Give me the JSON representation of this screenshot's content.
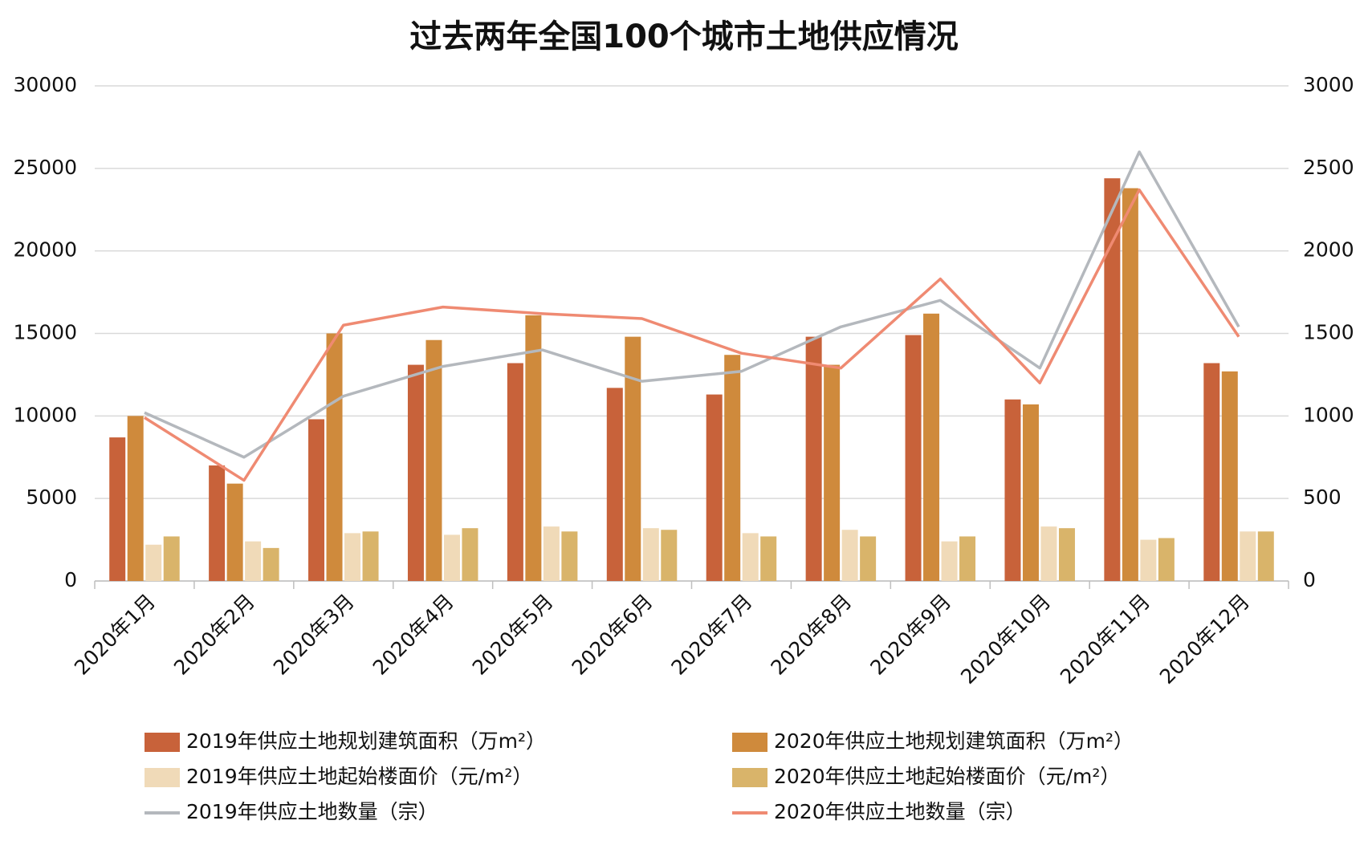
{
  "chart_data": {
    "type": "bar",
    "title": "过去两年全国100个城市土地供应情况",
    "categories": [
      "2020年1月",
      "2020年2月",
      "2020年3月",
      "2020年4月",
      "2020年5月",
      "2020年6月",
      "2020年7月",
      "2020年8月",
      "2020年9月",
      "2020年10月",
      "2020年11月",
      "2020年12月"
    ],
    "series": [
      {
        "name": "2019年供应土地规划建筑面积（万m²）",
        "type": "bar",
        "color": "#c8623a",
        "values": [
          8700,
          7000,
          9800,
          13100,
          13200,
          11700,
          11300,
          14800,
          14900,
          11000,
          24400,
          13200
        ]
      },
      {
        "name": "2020年供应土地规划建筑面积（万m²）",
        "type": "bar",
        "color": "#cf8a3c",
        "values": [
          10000,
          5900,
          15000,
          14600,
          16100,
          14800,
          13700,
          13100,
          16200,
          10700,
          23800,
          12700
        ]
      },
      {
        "name": "2019年供应土地起始楼面价（元/m²）",
        "type": "bar",
        "color": "#f0dab8",
        "values": [
          2200,
          2400,
          2900,
          2800,
          3300,
          3200,
          2900,
          3100,
          2400,
          3300,
          2500,
          3000
        ]
      },
      {
        "name": "2020年供应土地起始楼面价（元/m²）",
        "type": "bar",
        "color": "#d9b46a",
        "values": [
          2700,
          2000,
          3000,
          3200,
          3000,
          3100,
          2700,
          2700,
          2700,
          3200,
          2600,
          3000
        ]
      },
      {
        "name": "2019年供应土地数量（宗）",
        "type": "line",
        "axis": "y2",
        "color": "#b4b8bd",
        "values": [
          1020,
          750,
          1120,
          1300,
          1400,
          1210,
          1270,
          1540,
          1700,
          1290,
          2600,
          1540
        ]
      },
      {
        "name": "2020年供应土地数量（宗）",
        "type": "line",
        "axis": "y2",
        "color": "#ef8a72",
        "values": [
          990,
          610,
          1550,
          1660,
          1620,
          1590,
          1380,
          1290,
          1830,
          1200,
          2370,
          1480
        ]
      }
    ],
    "ylim": [
      0,
      30000
    ],
    "yticks": [
      0,
      5000,
      10000,
      15000,
      20000,
      25000,
      30000
    ],
    "y2lim": [
      0,
      3000
    ],
    "y2ticks": [
      0,
      500,
      1000,
      1500,
      2000,
      2500,
      3000
    ],
    "grid": true
  }
}
